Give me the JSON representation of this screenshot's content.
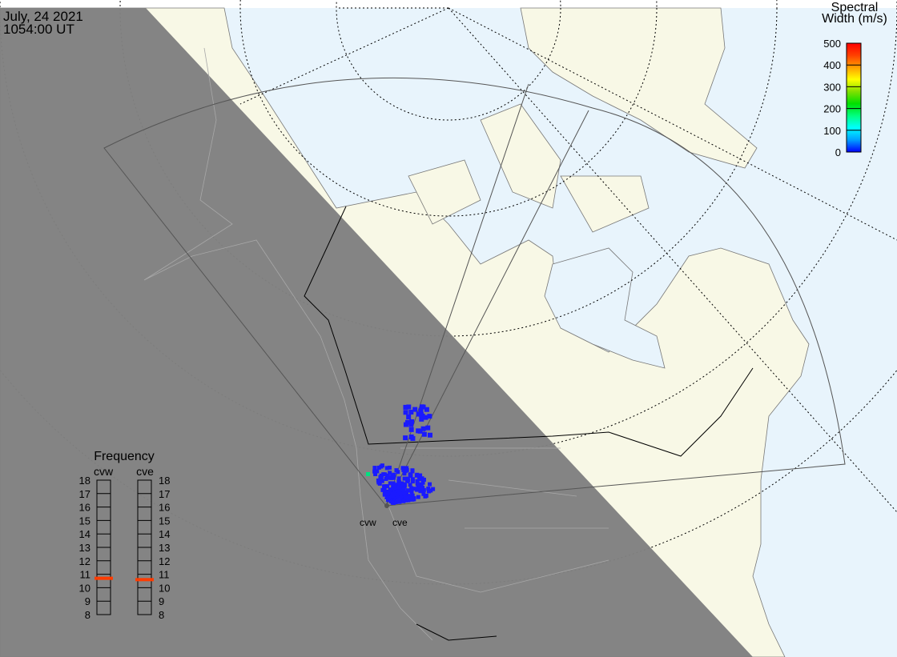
{
  "header": {
    "date": "July, 24 2021",
    "time": "1054:00 UT"
  },
  "colorbar": {
    "title_line1": "Spectral",
    "title_line2": "Width (m/s)",
    "ticks": [
      "500",
      "400",
      "300",
      "200",
      "100",
      "0"
    ],
    "range": [
      0,
      500
    ],
    "colors": [
      "#0000ff",
      "#00a0ff",
      "#00ffff",
      "#00ff80",
      "#00e000",
      "#80e000",
      "#ffff00",
      "#ffa000",
      "#ff4000",
      "#ff0000"
    ]
  },
  "frequency": {
    "title": "Frequency",
    "radars": [
      {
        "name": "cvw",
        "value_mhz": 10.7
      },
      {
        "name": "cve",
        "value_mhz": 10.6
      }
    ],
    "ticks": [
      "18",
      "17",
      "16",
      "15",
      "14",
      "13",
      "12",
      "11",
      "10",
      "9",
      "8"
    ],
    "range": [
      8,
      18
    ],
    "marker_color": "#ff3c00"
  },
  "radar_labels": [
    "cvw",
    "cve"
  ],
  "colors": {
    "ocean": "#e8f4fc",
    "land": "#f8f8e6",
    "night": "#808080",
    "echo": "#1a1aff"
  }
}
